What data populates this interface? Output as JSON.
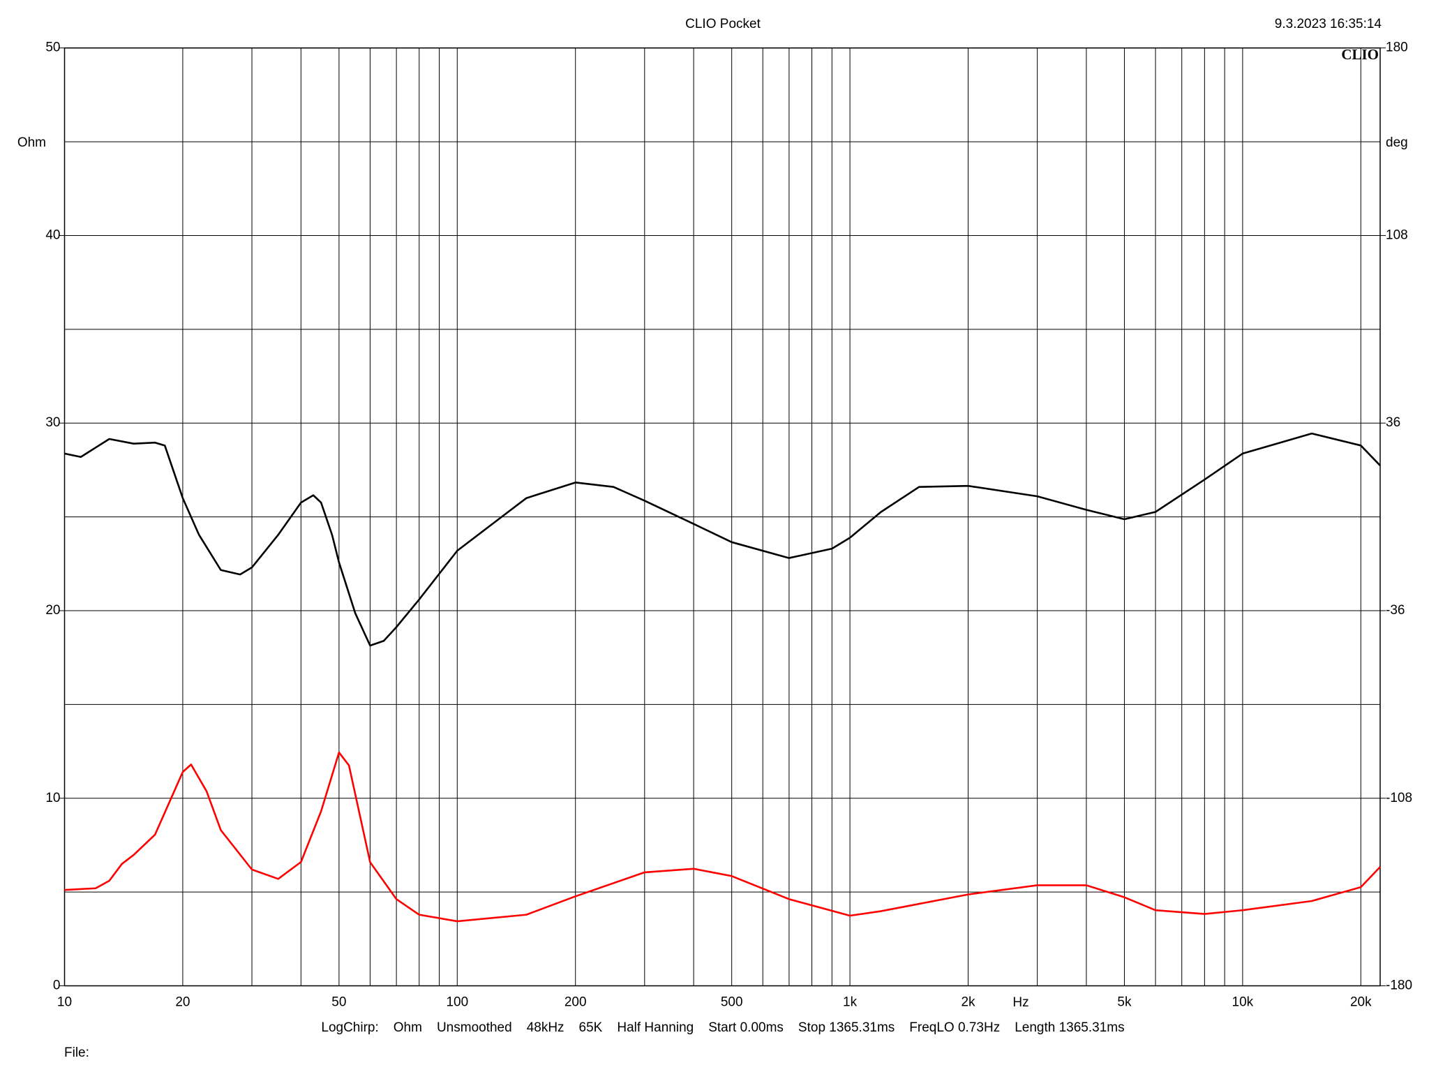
{
  "chart_data": {
    "type": "line",
    "title": "CLIO Pocket",
    "timestamp": "9.3.2023 16:35:14",
    "logo": "CLIO",
    "x_label": "Hz",
    "y_label": "Ohm",
    "y2_label": "deg",
    "footer": [
      "LogChirp:",
      "Ohm",
      "Unsmoothed",
      "48kHz",
      "65K",
      "Half Hanning",
      "Start 0.00ms",
      "Stop 1365.31ms",
      "FreqLO 0.73Hz",
      "Length 1365.31ms"
    ],
    "file_label": "File:",
    "x_log": true,
    "grid": true,
    "xlim": [
      10,
      22400
    ],
    "xticks": [
      10,
      20,
      50,
      100,
      200,
      500,
      {
        "value": 1000,
        "label": "1k"
      },
      {
        "value": 2000,
        "label": "2k"
      },
      {
        "value": 5000,
        "label": "5k"
      },
      {
        "value": 10000,
        "label": "10k"
      },
      {
        "value": 20000,
        "label": "20k"
      }
    ],
    "xgrid": [
      30,
      40,
      60,
      70,
      80,
      90,
      300,
      400,
      600,
      700,
      800,
      900,
      3000,
      4000,
      6000,
      7000,
      8000,
      9000
    ],
    "ylim": [
      0,
      50
    ],
    "yticks": [
      0,
      10,
      20,
      30,
      40,
      50
    ],
    "ygrid": [
      5,
      15,
      25,
      35,
      45
    ],
    "y2lim": [
      -180,
      180
    ],
    "y2ticks": [
      -180,
      -108,
      -36,
      36,
      108,
      180
    ],
    "series": [
      {
        "color": "#000000",
        "axis": "y2",
        "x": [
          10,
          11,
          12,
          13,
          15,
          17,
          18,
          20,
          22,
          25,
          28,
          30,
          35,
          40,
          43,
          45,
          48,
          50,
          55,
          60,
          65,
          70,
          80,
          100,
          130,
          150,
          200,
          250,
          300,
          400,
          500,
          700,
          900,
          1000,
          1200,
          1500,
          2000,
          3000,
          4000,
          5000,
          6000,
          8000,
          10000,
          15000,
          20000,
          22400
        ],
        "values": [
          24.3,
          23.0,
          26.6,
          29.9,
          28.1,
          28.5,
          27.4,
          7.2,
          -6.9,
          -20.4,
          -22.1,
          -19.4,
          -6.9,
          5.5,
          8.3,
          5.5,
          -6.9,
          -17.5,
          -37.0,
          -49.4,
          -47.6,
          -42.3,
          -31.7,
          -13.0,
          0.1,
          7.2,
          13.2,
          11.5,
          6.2,
          -2.7,
          -9.7,
          -15.8,
          -12.2,
          -8.0,
          1.9,
          11.5,
          11.9,
          7.9,
          2.7,
          -0.9,
          1.9,
          14.3,
          24.3,
          32.0,
          27.4,
          19.7
        ]
      },
      {
        "color": "#ff0000",
        "x": [
          10,
          12,
          13,
          14,
          15,
          17,
          20,
          21,
          23,
          25,
          30,
          35,
          40,
          45,
          50,
          53,
          60,
          70,
          80,
          100,
          150,
          200,
          300,
          400,
          500,
          700,
          1000,
          1200,
          2000,
          3000,
          4000,
          5000,
          6000,
          8000,
          10000,
          15000,
          20000,
          22400
        ],
        "values": [
          5.11,
          5.2,
          5.6,
          6.5,
          6.98,
          8.06,
          11.4,
          11.8,
          10.37,
          8.3,
          6.2,
          5.7,
          6.6,
          9.3,
          12.44,
          11.75,
          6.59,
          4.62,
          3.79,
          3.44,
          3.79,
          4.77,
          6.05,
          6.24,
          5.85,
          4.62,
          3.74,
          3.98,
          4.87,
          5.36,
          5.36,
          4.72,
          4.03,
          3.83,
          4.03,
          4.52,
          5.26,
          6.34
        ]
      }
    ]
  }
}
